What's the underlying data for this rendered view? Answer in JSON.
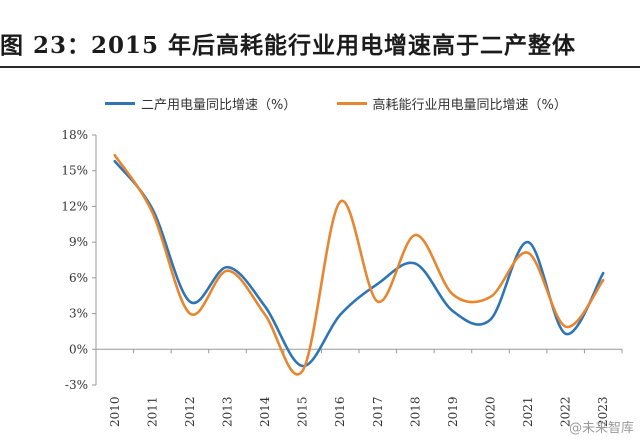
{
  "figure": {
    "title": "图 23：2015 年后高耗能行业用电增速高于二产整体",
    "watermark": "@未来智库"
  },
  "colors": {
    "series1": "#2e75b6",
    "series2": "#e8862f",
    "axis": "#999999"
  },
  "chart_data": {
    "type": "line",
    "title": "",
    "xlabel": "",
    "ylabel": "",
    "x": [
      "2010",
      "2011",
      "2012",
      "2013",
      "2014",
      "2015",
      "2016",
      "2017",
      "2018",
      "2019",
      "2020",
      "2021",
      "2022",
      "2023"
    ],
    "ylim": [
      -3,
      18
    ],
    "yticks": [
      -3,
      0,
      3,
      6,
      9,
      12,
      15,
      18
    ],
    "ytick_labels": [
      "-3%",
      "0%",
      "3%",
      "6%",
      "9%",
      "12%",
      "15%",
      "18%"
    ],
    "grid": false,
    "legend_position": "top",
    "series": [
      {
        "name": "二产用电量同比增速（%）",
        "color": "#2e75b6",
        "values": [
          15.8,
          11.8,
          4.0,
          6.9,
          3.6,
          -1.4,
          2.9,
          5.5,
          7.2,
          3.2,
          2.5,
          9.0,
          1.3,
          6.4
        ]
      },
      {
        "name": "高耗能行业用电量同比增速（%）",
        "color": "#e8862f",
        "values": [
          16.3,
          11.5,
          3.0,
          6.6,
          2.9,
          -1.8,
          12.4,
          4.0,
          9.6,
          4.6,
          4.4,
          8.1,
          1.9,
          5.8
        ]
      }
    ]
  }
}
